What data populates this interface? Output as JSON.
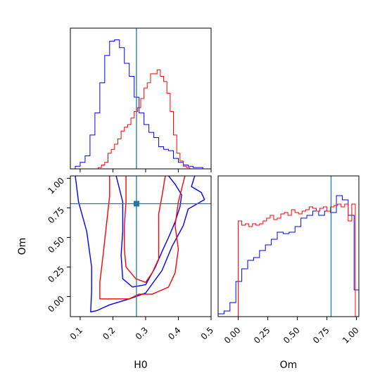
{
  "chart_data": [
    {
      "type": "histogram",
      "panel": "H0 marginal",
      "xlabel": "",
      "xlim": [
        0.07,
        0.5
      ],
      "ylim": [
        0,
        1.08
      ],
      "truth": 0.272,
      "series": [
        {
          "color": "#0000ff",
          "edges": [
            0.07,
            0.085,
            0.1,
            0.115,
            0.13,
            0.145,
            0.16,
            0.175,
            0.19,
            0.205,
            0.22,
            0.235,
            0.25,
            0.265,
            0.28,
            0.295,
            0.31,
            0.325,
            0.34,
            0.355,
            0.37,
            0.385,
            0.4,
            0.415,
            0.43,
            0.445,
            0.46,
            0.475,
            0.49
          ],
          "values": [
            0.0,
            0.02,
            0.05,
            0.1,
            0.26,
            0.43,
            0.66,
            0.87,
            0.98,
            0.99,
            0.93,
            0.81,
            0.71,
            0.55,
            0.43,
            0.34,
            0.28,
            0.24,
            0.17,
            0.15,
            0.14,
            0.08,
            0.05,
            0.03,
            0.02,
            0.01,
            0.01,
            0.0
          ]
        },
        {
          "color": "#ff0000",
          "edges": [
            0.155,
            0.165,
            0.175,
            0.185,
            0.195,
            0.205,
            0.215,
            0.225,
            0.235,
            0.245,
            0.255,
            0.265,
            0.275,
            0.285,
            0.295,
            0.305,
            0.315,
            0.325,
            0.335,
            0.345,
            0.355,
            0.365,
            0.375,
            0.385,
            0.395,
            0.405,
            0.415,
            0.425,
            0.435,
            0.445
          ],
          "values": [
            0.01,
            0.03,
            0.05,
            0.12,
            0.15,
            0.19,
            0.23,
            0.29,
            0.32,
            0.34,
            0.39,
            0.44,
            0.47,
            0.54,
            0.62,
            0.66,
            0.73,
            0.73,
            0.76,
            0.71,
            0.67,
            0.58,
            0.44,
            0.26,
            0.12,
            0.06,
            0.02,
            0.01,
            0.0
          ]
        }
      ],
      "xticks": []
    },
    {
      "type": "contour",
      "panel": "H0 vs Om joint",
      "xlabel": "H0",
      "ylabel": "Om",
      "xlim": [
        0.07,
        0.5
      ],
      "ylim": [
        -0.17,
        1.02
      ],
      "truth": {
        "x": 0.272,
        "y": 0.785
      },
      "xticks": [
        0.1,
        0.2,
        0.3,
        0.4,
        0.5
      ],
      "xtick_labels": [
        "0.1",
        "0.2",
        "0.3",
        "0.4",
        "0.5"
      ],
      "yticks": [
        0.0,
        0.25,
        0.5,
        0.75,
        1.0
      ],
      "ytick_labels": [
        "0.00",
        "0.25",
        "0.50",
        "0.75",
        "1.00"
      ],
      "contours": [
        {
          "color": "#0000ff",
          "points": [
            [
              0.085,
              1.02
            ],
            [
              0.095,
              0.8
            ],
            [
              0.12,
              0.55
            ],
            [
              0.135,
              0.25
            ],
            [
              0.135,
              0.05
            ],
            [
              0.132,
              -0.13
            ],
            [
              0.15,
              -0.12
            ],
            [
              0.19,
              -0.07
            ],
            [
              0.25,
              -0.02
            ],
            [
              0.3,
              0.03
            ],
            [
              0.35,
              0.22
            ],
            [
              0.38,
              0.42
            ],
            [
              0.415,
              0.6
            ],
            [
              0.43,
              0.74
            ],
            [
              0.48,
              0.82
            ],
            [
              0.47,
              0.88
            ],
            [
              0.44,
              0.93
            ],
            [
              0.45,
              1.02
            ]
          ]
        },
        {
          "color": "#0000ff",
          "points": [
            [
              0.21,
              1.02
            ],
            [
              0.23,
              0.8
            ],
            [
              0.23,
              0.55
            ],
            [
              0.225,
              0.35
            ],
            [
              0.23,
              0.15
            ],
            [
              0.26,
              0.08
            ],
            [
              0.3,
              0.1
            ],
            [
              0.33,
              0.25
            ],
            [
              0.35,
              0.38
            ],
            [
              0.37,
              0.5
            ],
            [
              0.39,
              0.63
            ],
            [
              0.405,
              0.76
            ],
            [
              0.41,
              0.86
            ],
            [
              0.39,
              0.95
            ],
            [
              0.37,
              1.02
            ]
          ]
        },
        {
          "color": "#ff0000",
          "points": [
            [
              0.19,
              1.02
            ],
            [
              0.19,
              0.85
            ],
            [
              0.18,
              0.6
            ],
            [
              0.17,
              0.35
            ],
            [
              0.16,
              0.12
            ],
            [
              0.16,
              -0.02
            ],
            [
              0.21,
              -0.02
            ],
            [
              0.25,
              -0.02
            ],
            [
              0.28,
              0.02
            ],
            [
              0.32,
              0.02
            ],
            [
              0.345,
              0.05
            ],
            [
              0.37,
              0.08
            ],
            [
              0.39,
              0.2
            ],
            [
              0.4,
              0.4
            ],
            [
              0.39,
              0.6
            ],
            [
              0.4,
              0.8
            ],
            [
              0.42,
              1.02
            ]
          ]
        },
        {
          "color": "#ff0000",
          "points": [
            [
              0.24,
              1.02
            ],
            [
              0.24,
              0.8
            ],
            [
              0.235,
              0.6
            ],
            [
              0.235,
              0.4
            ],
            [
              0.24,
              0.25
            ],
            [
              0.27,
              0.15
            ],
            [
              0.3,
              0.12
            ],
            [
              0.32,
              0.2
            ],
            [
              0.34,
              0.32
            ],
            [
              0.34,
              0.5
            ],
            [
              0.34,
              0.7
            ],
            [
              0.35,
              0.85
            ],
            [
              0.36,
              1.02
            ]
          ]
        }
      ]
    },
    {
      "type": "histogram",
      "panel": "Om marginal",
      "xlabel": "Om",
      "xlim": [
        -0.17,
        1.02
      ],
      "ylim": [
        0,
        1.0
      ],
      "truth": 0.785,
      "xticks": [
        0.0,
        0.25,
        0.5,
        0.75,
        1.0
      ],
      "xtick_labels": [
        "0.00",
        "0.25",
        "0.50",
        "0.75",
        "1.00"
      ],
      "series": [
        {
          "color": "#0000ff",
          "edges": [
            -0.17,
            -0.12,
            -0.07,
            -0.02,
            0.03,
            0.08,
            0.13,
            0.18,
            0.23,
            0.28,
            0.33,
            0.38,
            0.43,
            0.48,
            0.53,
            0.58,
            0.63,
            0.68,
            0.73,
            0.78,
            0.83,
            0.88,
            0.93,
            0.98,
            1.02
          ],
          "values": [
            0.02,
            0.04,
            0.1,
            0.25,
            0.34,
            0.4,
            0.42,
            0.47,
            0.51,
            0.55,
            0.6,
            0.59,
            0.6,
            0.64,
            0.7,
            0.72,
            0.75,
            0.72,
            0.75,
            0.74,
            0.86,
            0.83,
            0.72,
            0.19
          ]
        },
        {
          "color": "#ff0000",
          "edges": [
            0.0,
            0.03,
            0.06,
            0.09,
            0.12,
            0.15,
            0.18,
            0.21,
            0.24,
            0.27,
            0.3,
            0.33,
            0.36,
            0.39,
            0.42,
            0.45,
            0.48,
            0.51,
            0.54,
            0.57,
            0.6,
            0.63,
            0.66,
            0.69,
            0.72,
            0.75,
            0.78,
            0.81,
            0.84,
            0.87,
            0.9,
            0.93,
            0.96,
            0.99,
            1.0
          ],
          "values": [
            0.68,
            0.65,
            0.66,
            0.64,
            0.66,
            0.65,
            0.66,
            0.68,
            0.7,
            0.72,
            0.69,
            0.7,
            0.73,
            0.74,
            0.72,
            0.76,
            0.74,
            0.73,
            0.75,
            0.76,
            0.78,
            0.77,
            0.75,
            0.77,
            0.78,
            0.75,
            0.78,
            0.79,
            0.8,
            0.78,
            0.8,
            0.68,
            0.8,
            0.0
          ]
        }
      ]
    }
  ]
}
